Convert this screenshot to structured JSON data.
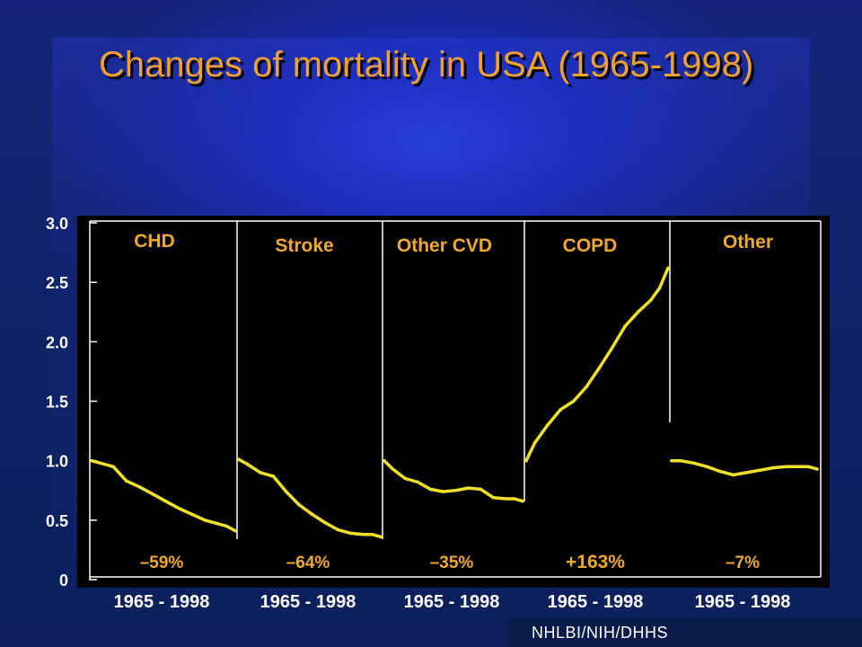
{
  "title": "Changes of mortality in USA (1965-1998)",
  "source": "NHLBI/NIH/DHHS",
  "chart_data": {
    "type": "line",
    "ylim": [
      0,
      3.0
    ],
    "yticks": [
      "0",
      "0.5",
      "1.0",
      "1.5",
      "2.0",
      "2.5",
      "3.0"
    ],
    "ytick_values": [
      0,
      0.5,
      1.0,
      1.5,
      2.0,
      2.5,
      3.0
    ],
    "panels": [
      {
        "name": "CHD",
        "xlabel": "1965 - 1998",
        "change": "–59%",
        "x": [
          1965,
          1967,
          1970,
          1973,
          1976,
          1979,
          1982,
          1985,
          1988,
          1991,
          1994,
          1996,
          1998
        ],
        "y": [
          1.0,
          0.98,
          0.95,
          0.83,
          0.78,
          0.72,
          0.66,
          0.6,
          0.55,
          0.5,
          0.47,
          0.45,
          0.41
        ]
      },
      {
        "name": "Stroke",
        "xlabel": "1965 - 1998",
        "change": "–64%",
        "x": [
          1965,
          1967,
          1970,
          1973,
          1976,
          1979,
          1982,
          1985,
          1988,
          1991,
          1994,
          1996,
          1998
        ],
        "y": [
          1.01,
          0.97,
          0.9,
          0.87,
          0.74,
          0.63,
          0.55,
          0.48,
          0.42,
          0.39,
          0.38,
          0.38,
          0.36
        ]
      },
      {
        "name": "Other CVD",
        "xlabel": "1965 - 1998",
        "change": "–35%",
        "x": [
          1965,
          1967,
          1970,
          1973,
          1976,
          1979,
          1982,
          1985,
          1988,
          1991,
          1994,
          1996,
          1998
        ],
        "y": [
          1.0,
          0.93,
          0.85,
          0.82,
          0.76,
          0.74,
          0.75,
          0.77,
          0.76,
          0.69,
          0.68,
          0.68,
          0.66
        ]
      },
      {
        "name": "COPD",
        "xlabel": "1965 - 1998",
        "change": "+163%",
        "x": [
          1965,
          1967,
          1970,
          1973,
          1976,
          1979,
          1982,
          1985,
          1988,
          1991,
          1994,
          1996,
          1998
        ],
        "y": [
          1.0,
          1.15,
          1.3,
          1.43,
          1.5,
          1.62,
          1.78,
          1.95,
          2.13,
          2.25,
          2.35,
          2.45,
          2.62
        ]
      },
      {
        "name": "Other",
        "xlabel": "1965 - 1998",
        "change": "–7%",
        "x": [
          1965,
          1967,
          1970,
          1973,
          1976,
          1979,
          1982,
          1985,
          1988,
          1991,
          1994,
          1996,
          1998
        ],
        "y": [
          1.0,
          1.0,
          0.98,
          0.95,
          0.91,
          0.88,
          0.9,
          0.92,
          0.94,
          0.95,
          0.95,
          0.95,
          0.93
        ]
      }
    ],
    "colors": {
      "line": "#f0e02a",
      "label": "#f0a830",
      "axis": "#ffffff",
      "plot_bg": "#000000"
    },
    "grid": false
  }
}
